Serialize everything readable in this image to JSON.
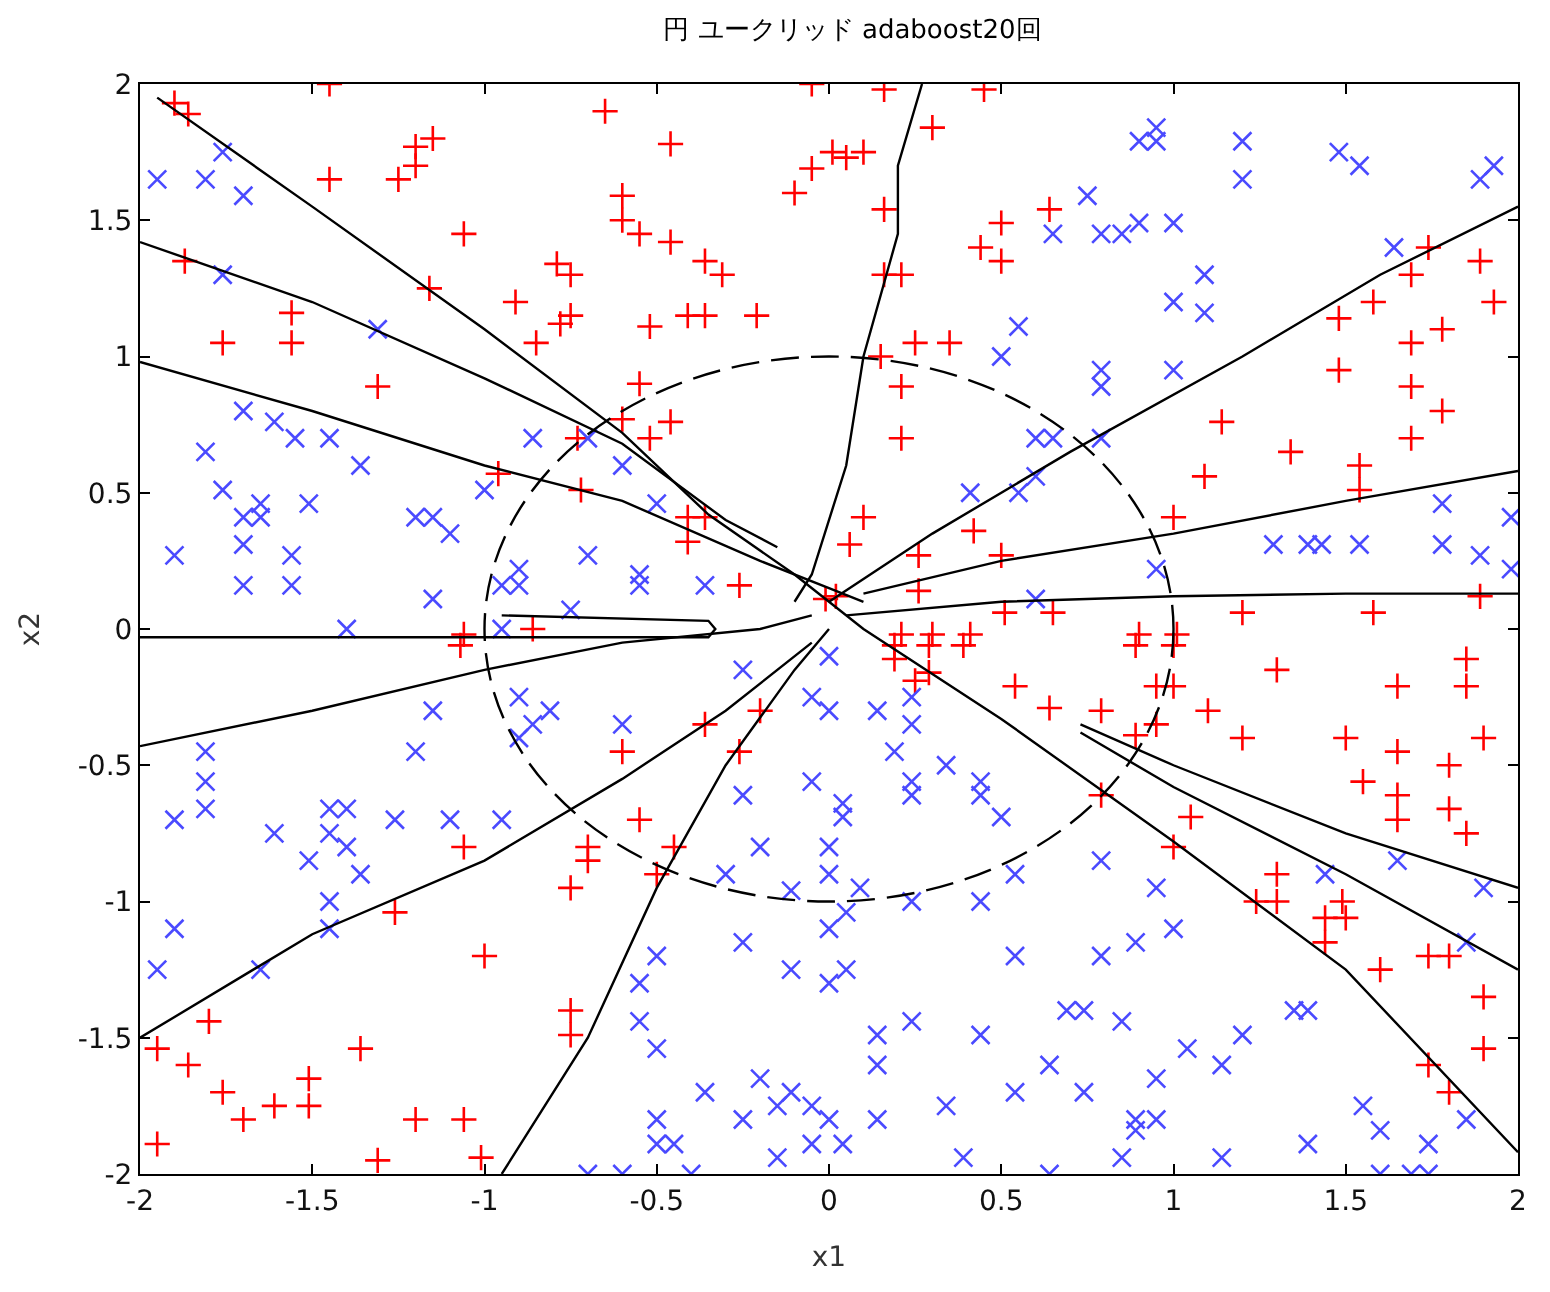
{
  "chart_data": {
    "type": "scatter",
    "title": "円 ユークリッド adaboost20回",
    "xlabel": "x1",
    "ylabel": "x2",
    "xlim": [
      -2,
      2
    ],
    "ylim": [
      -2,
      2
    ],
    "xticks": [
      -2,
      -1.5,
      -1,
      -0.5,
      0,
      0.5,
      1,
      1.5,
      2
    ],
    "yticks": [
      -2,
      -1.5,
      -1,
      -0.5,
      0,
      0.5,
      1,
      1.5,
      2
    ],
    "grid": false,
    "series": [
      {
        "color": "#ff0000",
        "marker": "cross",
        "x": [
          -1.9,
          -1.86,
          -1.45,
          -1.45,
          -1.25,
          -1.2,
          -1.2,
          -1.15,
          -1.06,
          -1.16,
          -1.87,
          -1.76,
          -1.56,
          -1.56,
          -1.31,
          -0.96,
          -0.91,
          -0.85,
          -0.79,
          -0.75,
          -0.78,
          -0.75,
          -0.65,
          -0.6,
          -0.6,
          -0.55,
          -0.46,
          -0.46,
          -0.52,
          -0.41,
          -0.36,
          -0.36,
          -0.31,
          -0.21,
          -0.55,
          -0.6,
          -0.52,
          -0.46,
          -0.73,
          -0.72,
          -0.41,
          -0.36,
          -0.41,
          -0.26,
          -0.01,
          -0.05,
          -0.05,
          -0.1,
          0.05,
          -1.06,
          -0.86,
          0.16,
          0.45,
          0.3,
          0.01,
          0.1,
          0.16,
          0.5,
          0.44,
          0.5,
          0.16,
          0.21,
          0.64,
          0.25,
          0.35,
          0.15,
          0.21,
          0.21,
          0.1,
          0.06,
          0.42,
          0.26,
          0.26,
          0.5,
          0.02,
          1.14,
          1.34,
          1.09,
          1.54,
          1.54,
          1.48,
          1.58,
          1.69,
          1.74,
          1.89,
          1.93,
          1.78,
          1.69,
          1.48,
          1.69,
          1.78,
          1.69,
          1.0,
          1.89,
          1.58,
          1.2,
          0.51,
          0.65,
          0.21,
          0.3,
          0.41,
          0.9,
          1.01,
          -1.07,
          -1.06,
          -1.26,
          -1.0,
          -0.75,
          -0.7,
          -0.7,
          -0.6,
          -0.55,
          -0.45,
          -0.5,
          -0.36,
          -0.2,
          -0.26,
          -0.75,
          -0.75,
          -1.8,
          -1.95,
          -1.86,
          -1.76,
          -1.7,
          -1.61,
          -1.51,
          -1.51,
          -1.36,
          -1.2,
          -1.06,
          -1.31,
          -1.01,
          -1.95,
          0.19,
          0.29,
          0.39,
          0.19,
          0.29,
          0.25,
          0.54,
          0.64,
          0.79,
          0.89,
          1.0,
          0.95,
          1.0,
          0.95,
          0.89,
          1.1,
          1.2,
          1.3,
          1.65,
          1.85,
          1.85,
          1.5,
          1.65,
          1.8,
          1.9,
          1.55,
          1.65,
          1.65,
          1.8,
          1.85,
          0.79,
          1.05,
          1.0,
          1.3,
          1.24,
          1.3,
          1.44,
          1.49,
          1.44,
          1.5,
          1.6,
          1.74,
          1.8,
          1.9,
          1.9,
          1.74,
          1.8
        ],
        "values": [
          1.93,
          1.89,
          2.0,
          1.65,
          1.65,
          1.7,
          1.77,
          1.8,
          1.45,
          1.25,
          1.35,
          1.05,
          1.16,
          1.05,
          0.89,
          0.57,
          1.2,
          1.05,
          1.34,
          1.15,
          1.12,
          1.3,
          1.9,
          1.59,
          1.5,
          1.45,
          1.78,
          1.42,
          1.11,
          1.15,
          1.15,
          1.35,
          1.3,
          1.15,
          0.9,
          0.77,
          0.7,
          0.76,
          0.7,
          0.51,
          0.41,
          0.41,
          0.32,
          0.16,
          0.11,
          2.0,
          1.69,
          1.6,
          1.73,
          -0.02,
          0.0,
          1.98,
          1.98,
          1.84,
          1.75,
          1.75,
          1.54,
          1.49,
          1.4,
          1.35,
          1.3,
          1.3,
          1.54,
          1.05,
          1.05,
          1.0,
          0.89,
          0.7,
          0.41,
          0.31,
          0.36,
          0.27,
          0.14,
          0.27,
          0.12,
          0.76,
          0.65,
          0.56,
          0.6,
          0.51,
          1.14,
          1.2,
          1.3,
          1.4,
          1.35,
          1.2,
          1.1,
          1.05,
          0.95,
          0.89,
          0.8,
          0.7,
          0.41,
          0.12,
          0.06,
          0.06,
          0.06,
          0.06,
          -0.02,
          -0.02,
          -0.02,
          -0.02,
          -0.02,
          -0.06,
          -0.8,
          -1.04,
          -1.2,
          -0.95,
          -0.8,
          -0.85,
          -0.45,
          -0.7,
          -0.8,
          -0.9,
          -0.35,
          -0.3,
          -0.45,
          -1.4,
          -1.49,
          -1.44,
          -1.54,
          -1.6,
          -1.7,
          -1.8,
          -1.75,
          -1.65,
          -1.75,
          -1.54,
          -1.8,
          -1.8,
          -1.95,
          -1.94,
          -1.89,
          -0.06,
          -0.06,
          -0.06,
          -0.11,
          -0.16,
          -0.19,
          -0.21,
          -0.29,
          -0.3,
          -0.06,
          -0.06,
          -0.21,
          -0.21,
          -0.35,
          -0.39,
          -0.3,
          -0.4,
          -0.15,
          -0.21,
          -0.11,
          -0.21,
          -0.4,
          -0.45,
          -0.5,
          -0.4,
          -0.56,
          -0.61,
          -0.7,
          -0.66,
          -0.75,
          -0.61,
          -0.69,
          -0.8,
          -0.9,
          -1.0,
          -1.0,
          -1.06,
          -1.0,
          -1.15,
          -1.06,
          -1.25,
          -1.2,
          -1.2,
          -1.35,
          -1.54,
          -1.6,
          -1.7
        ]
      },
      {
        "color": "#4a4aff",
        "marker": "x",
        "x": [
          -1.95,
          -1.81,
          -1.76,
          -1.7,
          -1.76,
          -1.31,
          -1.7,
          -1.61,
          -1.55,
          -1.45,
          -1.36,
          -1.81,
          -1.76,
          -1.7,
          -1.65,
          -1.65,
          -1.51,
          -1.7,
          -1.9,
          -1.56,
          -1.7,
          -1.56,
          -1.2,
          -1.15,
          -1.1,
          -1.15,
          -1.0,
          -0.86,
          -0.7,
          -0.6,
          -0.5,
          -0.7,
          -0.9,
          -0.95,
          -0.9,
          -0.55,
          -0.55,
          -0.36,
          -0.75,
          -1.4,
          -0.95,
          0.95,
          0.9,
          0.95,
          1.2,
          1.2,
          1.48,
          1.54,
          1.89,
          1.93,
          0.75,
          0.65,
          0.79,
          0.85,
          0.9,
          1.0,
          1.09,
          1.0,
          1.09,
          1.64,
          0.55,
          0.5,
          0.79,
          0.79,
          1.0,
          0.6,
          0.65,
          0.79,
          0.6,
          0.55,
          0.41,
          0.95,
          0.6,
          1.29,
          1.39,
          1.43,
          1.54,
          1.78,
          1.78,
          1.89,
          1.98,
          1.98,
          -0.9,
          -0.86,
          -0.9,
          -0.81,
          -1.15,
          -1.2,
          -1.81,
          -1.81,
          -1.81,
          -1.9,
          -1.61,
          -1.45,
          -1.4,
          -1.45,
          -1.4,
          -1.51,
          -1.36,
          -1.26,
          -1.1,
          -0.95,
          -1.45,
          -1.45,
          -1.9,
          -1.95,
          -1.65,
          -0.6,
          -0.25,
          0.0,
          -0.05,
          0.0,
          -0.05,
          -0.25,
          -0.2,
          -0.3,
          -0.11,
          0.0,
          0.0,
          -0.25,
          -0.11,
          0.0,
          0.0,
          -0.5,
          -0.55,
          -0.55,
          -0.5,
          -0.36,
          -0.5,
          -0.5,
          -0.45,
          -0.2,
          -0.25,
          -0.15,
          -0.11,
          -0.05,
          0.0,
          -0.05,
          -0.15,
          -0.7,
          -0.6,
          -0.4,
          0.14,
          0.24,
          0.24,
          0.19,
          0.34,
          0.24,
          0.24,
          0.44,
          0.44,
          0.04,
          0.04,
          0.5,
          0.79,
          0.54,
          0.09,
          0.05,
          0.24,
          0.44,
          0.95,
          1.0,
          0.89,
          0.79,
          0.54,
          0.05,
          1.44,
          1.65,
          1.9,
          1.85,
          0.69,
          0.74,
          0.85,
          1.35,
          1.39,
          1.2,
          1.04,
          1.14,
          0.95,
          0.64,
          0.74,
          0.54,
          0.24,
          0.14,
          0.14,
          0.44,
          0.34,
          0.14,
          0.04,
          0.39,
          0.85,
          0.89,
          0.89,
          0.95,
          1.14,
          1.39,
          1.55,
          1.6,
          1.74,
          1.85,
          0.64,
          1.6,
          1.69,
          1.74
        ],
        "values": [
          1.65,
          1.65,
          1.75,
          1.59,
          1.3,
          1.1,
          0.8,
          0.76,
          0.7,
          0.7,
          0.6,
          0.65,
          0.51,
          0.41,
          0.46,
          0.41,
          0.46,
          0.31,
          0.27,
          0.27,
          0.16,
          0.16,
          0.41,
          0.41,
          0.35,
          0.11,
          0.51,
          0.7,
          0.7,
          0.6,
          0.46,
          0.27,
          0.22,
          0.16,
          0.16,
          0.2,
          0.16,
          0.16,
          0.07,
          0.0,
          0.0,
          1.84,
          1.79,
          1.79,
          1.79,
          1.65,
          1.75,
          1.7,
          1.65,
          1.7,
          1.59,
          1.45,
          1.45,
          1.45,
          1.49,
          1.49,
          1.3,
          1.2,
          1.16,
          1.4,
          1.11,
          1.0,
          0.95,
          0.89,
          0.95,
          0.7,
          0.7,
          0.7,
          0.56,
          0.5,
          0.5,
          0.22,
          0.11,
          0.31,
          0.31,
          0.31,
          0.31,
          0.46,
          0.31,
          0.27,
          0.41,
          0.22,
          -0.25,
          -0.35,
          -0.4,
          -0.3,
          -0.3,
          -0.45,
          -0.45,
          -0.56,
          -0.66,
          -0.7,
          -0.75,
          -0.66,
          -0.66,
          -0.75,
          -0.8,
          -0.85,
          -0.9,
          -0.7,
          -0.7,
          -0.7,
          -1.0,
          -1.1,
          -1.1,
          -1.25,
          -1.25,
          -0.35,
          -0.15,
          -0.1,
          -0.25,
          -0.3,
          -0.56,
          -0.61,
          -0.8,
          -0.9,
          -0.96,
          -0.8,
          -0.9,
          -1.15,
          -1.25,
          -1.1,
          -1.3,
          -1.2,
          -1.3,
          -1.44,
          -1.54,
          -1.7,
          -1.8,
          -1.89,
          -1.89,
          -1.65,
          -1.8,
          -1.75,
          -1.7,
          -1.75,
          -1.8,
          -1.89,
          -1.94,
          -2.0,
          -2.0,
          -2.0,
          -0.3,
          -0.25,
          -0.35,
          -0.45,
          -0.5,
          -0.56,
          -0.61,
          -0.56,
          -0.61,
          -0.64,
          -0.69,
          -0.69,
          -0.85,
          -0.9,
          -0.95,
          -1.04,
          -1.0,
          -1.0,
          -0.95,
          -1.1,
          -1.15,
          -1.2,
          -1.2,
          -1.25,
          -0.9,
          -0.85,
          -0.95,
          -1.15,
          -1.4,
          -1.4,
          -1.44,
          -1.4,
          -1.4,
          -1.49,
          -1.54,
          -1.6,
          -1.65,
          -1.6,
          -1.7,
          -1.7,
          -1.44,
          -1.49,
          -1.6,
          -1.49,
          -1.75,
          -1.8,
          -1.89,
          -1.94,
          -1.94,
          -1.8,
          -1.84,
          -1.8,
          -1.94,
          -1.89,
          -1.75,
          -1.84,
          -1.89,
          -1.8,
          -2.0,
          -2.0,
          -2.0,
          -2.0
        ]
      },
      {
        "type": "line",
        "color": "#000000",
        "line_style": "solid",
        "x": [
          -1.95,
          -1.5,
          -1.0,
          -0.6,
          -0.35,
          -0.1,
          0.1,
          0.5,
          1.0,
          1.5,
          2.0
        ],
        "values": [
          1.95,
          1.55,
          1.1,
          0.72,
          0.42,
          0.2,
          0.0,
          -0.33,
          -0.78,
          -1.25,
          -1.92
        ]
      },
      {
        "type": "line",
        "color": "#000000",
        "line_style": "solid",
        "x": [
          -2.0,
          -1.5,
          -1.0,
          -0.6,
          -0.3,
          -0.15
        ],
        "values": [
          1.42,
          1.2,
          0.92,
          0.68,
          0.4,
          0.3
        ]
      },
      {
        "type": "line",
        "color": "#000000",
        "line_style": "solid",
        "x": [
          -2.0,
          -1.5,
          -1.0,
          -0.6,
          -0.2,
          0.0,
          0.1
        ],
        "values": [
          0.98,
          0.8,
          0.6,
          0.47,
          0.25,
          0.15,
          0.1
        ]
      },
      {
        "type": "line",
        "color": "#000000",
        "line_style": "solid",
        "x": [
          -2.0,
          -0.35,
          -0.33,
          -0.35,
          -0.95
        ],
        "values": [
          -0.03,
          -0.03,
          0.0,
          0.03,
          0.05
        ]
      },
      {
        "type": "line",
        "color": "#000000",
        "line_style": "solid",
        "x": [
          -2.0,
          -1.5,
          -1.0,
          -0.6,
          -0.2,
          -0.05
        ],
        "values": [
          -0.43,
          -0.3,
          -0.15,
          -0.05,
          0.0,
          0.05
        ]
      },
      {
        "type": "line",
        "color": "#000000",
        "line_style": "solid",
        "x": [
          -2.0,
          -1.5,
          -1.0,
          -0.6,
          -0.3,
          -0.05
        ],
        "values": [
          -1.5,
          -1.12,
          -0.85,
          -0.55,
          -0.3,
          -0.05
        ]
      },
      {
        "type": "line",
        "color": "#000000",
        "line_style": "solid",
        "x": [
          -0.95,
          -0.7,
          -0.5,
          -0.3,
          -0.1,
          0.0
        ],
        "values": [
          -2.0,
          -1.5,
          -0.95,
          -0.5,
          -0.15,
          0.0
        ]
      },
      {
        "type": "line",
        "color": "#000000",
        "line_style": "solid",
        "x": [
          0.27,
          0.2,
          0.2,
          0.1,
          0.05,
          -0.05,
          -0.1
        ],
        "values": [
          2.0,
          1.7,
          1.45,
          1.0,
          0.6,
          0.2,
          0.1
        ]
      },
      {
        "type": "line",
        "color": "#000000",
        "line_style": "solid",
        "x": [
          0.0,
          0.3,
          0.7,
          1.2,
          1.6,
          2.0
        ],
        "values": [
          0.1,
          0.35,
          0.65,
          1.0,
          1.3,
          1.55
        ]
      },
      {
        "type": "line",
        "color": "#000000",
        "line_style": "solid",
        "x": [
          0.1,
          0.5,
          1.0,
          1.5,
          2.0
        ],
        "values": [
          0.13,
          0.25,
          0.35,
          0.47,
          0.58
        ]
      },
      {
        "type": "line",
        "color": "#000000",
        "line_style": "solid",
        "x": [
          0.05,
          0.5,
          1.0,
          1.5,
          2.0
        ],
        "values": [
          0.05,
          0.1,
          0.12,
          0.13,
          0.13
        ]
      },
      {
        "type": "line",
        "color": "#000000",
        "line_style": "solid",
        "x": [
          0.73,
          1.0,
          1.5,
          2.0
        ],
        "values": [
          -0.35,
          -0.5,
          -0.75,
          -0.95
        ]
      },
      {
        "type": "line",
        "color": "#000000",
        "line_style": "solid",
        "x": [
          0.73,
          1.0,
          1.5,
          2.0
        ],
        "values": [
          -0.38,
          -0.58,
          -0.9,
          -1.25
        ]
      }
    ]
  }
}
